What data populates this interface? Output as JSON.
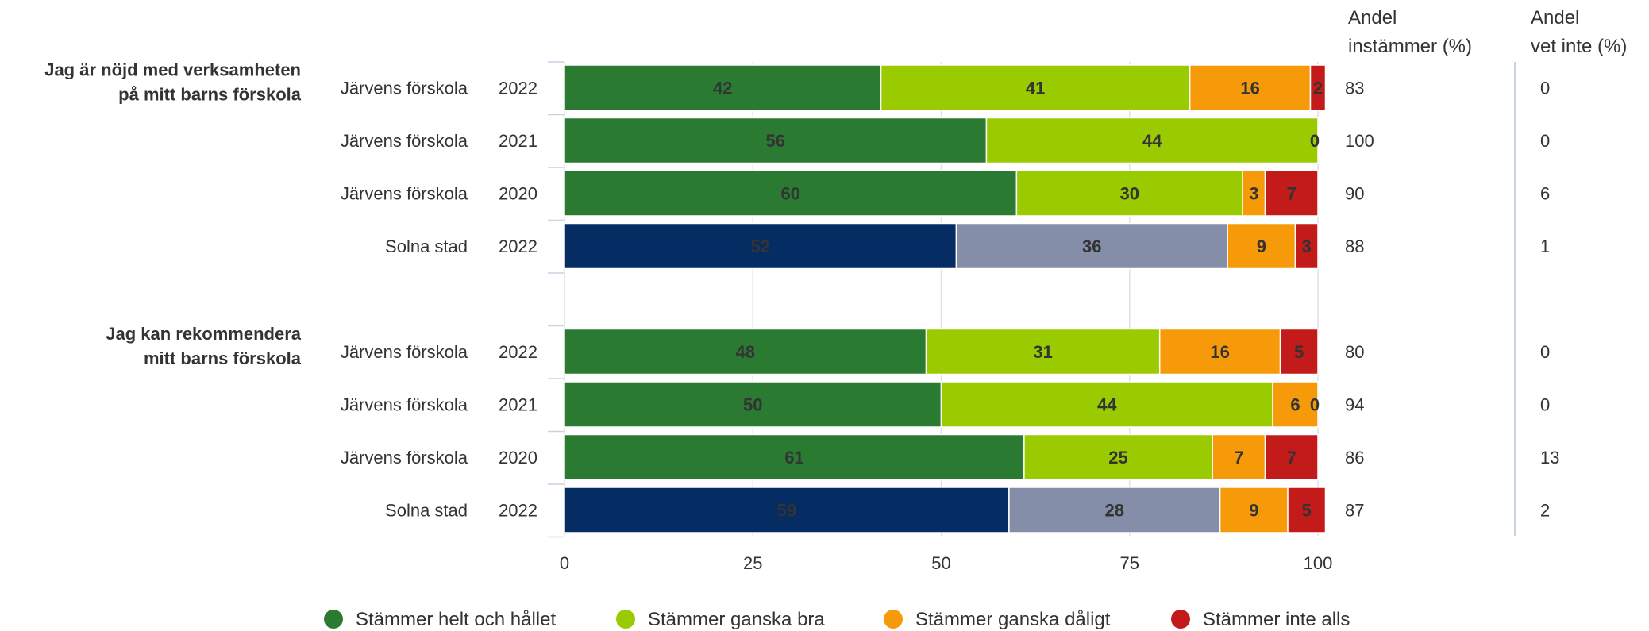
{
  "colors": {
    "helt": "#2a7a32",
    "ganska_bra": "#9acb00",
    "ganska_daligt": "#f79a0a",
    "inte_alls": "#c31a1a",
    "solna_helt": "#052c63",
    "solna_ganska_bra": "#858ea8",
    "grid": "#dde1ea",
    "text": "#333333"
  },
  "chart_data": {
    "type": "bar",
    "orientation": "horizontal",
    "stacked": true,
    "xlim": [
      0,
      100
    ],
    "xticks": [
      "0",
      "25",
      "50",
      "75",
      "100"
    ],
    "grid": true,
    "legend_position": "bottom",
    "column_headers": {
      "share_agree": [
        "Andel",
        "instämmer (%)"
      ],
      "share_dont_know": [
        "Andel",
        "vet inte (%)"
      ]
    },
    "legend": [
      {
        "label": "Stämmer helt och hållet",
        "color_key": "helt"
      },
      {
        "label": "Stämmer ganska bra",
        "color_key": "ganska_bra"
      },
      {
        "label": "Stämmer ganska dåligt",
        "color_key": "ganska_daligt"
      },
      {
        "label": "Stämmer inte alls",
        "color_key": "inte_alls"
      }
    ],
    "groups": [
      {
        "question_lines": [
          "Jag är nöjd med verksamheten",
          "på mitt barns förskola"
        ],
        "rows": [
          {
            "unit": "Järvens förskola",
            "year": "2022",
            "values": [
              42,
              41,
              16,
              2
            ],
            "share_agree": "83",
            "share_dont_know": "0"
          },
          {
            "unit": "Järvens förskola",
            "year": "2021",
            "values": [
              56,
              44,
              0,
              0
            ],
            "value_labels": [
              "56",
              "44",
              "0",
              ""
            ],
            "share_agree": "100",
            "share_dont_know": "0"
          },
          {
            "unit": "Järvens förskola",
            "year": "2020",
            "values": [
              60,
              30,
              3,
              7
            ],
            "share_agree": "90",
            "share_dont_know": "6"
          },
          {
            "unit": "Solna stad",
            "year": "2022",
            "values": [
              52,
              36,
              9,
              3
            ],
            "share_agree": "88",
            "share_dont_know": "1",
            "reference": true
          }
        ]
      },
      {
        "question_lines": [
          "Jag kan rekommendera",
          "mitt barns förskola"
        ],
        "rows": [
          {
            "unit": "Järvens förskola",
            "year": "2022",
            "values": [
              48,
              31,
              16,
              5
            ],
            "share_agree": "80",
            "share_dont_know": "0"
          },
          {
            "unit": "Järvens förskola",
            "year": "2021",
            "values": [
              50,
              44,
              6,
              0
            ],
            "value_labels": [
              "50",
              "44",
              "6",
              "0"
            ],
            "share_agree": "94",
            "share_dont_know": "0"
          },
          {
            "unit": "Järvens förskola",
            "year": "2020",
            "values": [
              61,
              25,
              7,
              7
            ],
            "share_agree": "86",
            "share_dont_know": "13"
          },
          {
            "unit": "Solna stad",
            "year": "2022",
            "values": [
              59,
              28,
              9,
              5
            ],
            "share_agree": "87",
            "share_dont_know": "2",
            "reference": true
          }
        ]
      }
    ]
  }
}
